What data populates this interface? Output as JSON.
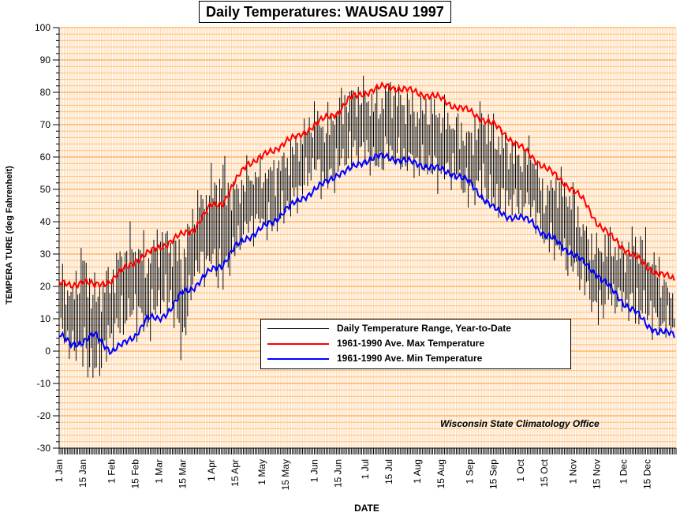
{
  "chart_data": {
    "type": "line",
    "title": "Daily Temperatures: WAUSAU 1997",
    "xlabel": "DATE",
    "ylabel": "TEMPERA TURE (deg Fahrenheit)",
    "ylim": [
      -30,
      100
    ],
    "yticks": [
      -30,
      -20,
      -10,
      0,
      10,
      20,
      30,
      40,
      50,
      60,
      70,
      80,
      90,
      100
    ],
    "xlim_day_of_year": [
      1,
      366
    ],
    "grid": true,
    "legend_position": "center",
    "x_tick_labels": [
      {
        "label": "1 Jan",
        "day": 1
      },
      {
        "label": "15 Jan",
        "day": 15
      },
      {
        "label": "1 Feb",
        "day": 32
      },
      {
        "label": "15 Feb",
        "day": 46
      },
      {
        "label": "1 Mar",
        "day": 60
      },
      {
        "label": "15 Mar",
        "day": 74
      },
      {
        "label": "1 Apr",
        "day": 91
      },
      {
        "label": "15 Apr",
        "day": 105
      },
      {
        "label": "1 May",
        "day": 121
      },
      {
        "label": "15 May",
        "day": 135
      },
      {
        "label": "1 Jun",
        "day": 152
      },
      {
        "label": "15 Jun",
        "day": 166
      },
      {
        "label": "1 Jul",
        "day": 182
      },
      {
        "label": "15 Jul",
        "day": 196
      },
      {
        "label": "1 Aug",
        "day": 213
      },
      {
        "label": "15 Aug",
        "day": 227
      },
      {
        "label": "1 Sep",
        "day": 244
      },
      {
        "label": "15 Sep",
        "day": 258
      },
      {
        "label": "1 Oct",
        "day": 274
      },
      {
        "label": "15 Oct",
        "day": 288
      },
      {
        "label": "1 Nov",
        "day": 305
      },
      {
        "label": "15 Nov",
        "day": 319
      },
      {
        "label": "1 Dec",
        "day": 335
      },
      {
        "label": "15 Dec",
        "day": 349
      }
    ],
    "series": [
      {
        "name": "Daily Temperature Range, Year-to-Date",
        "kind": "range",
        "color": "#000000",
        "anchor_days": [
          1,
          8,
          15,
          22,
          32,
          39,
          46,
          53,
          60,
          67,
          74,
          81,
          91,
          98,
          105,
          112,
          121,
          128,
          135,
          142,
          152,
          159,
          166,
          173,
          182,
          189,
          196,
          203,
          213,
          220,
          227,
          234,
          244,
          251,
          258,
          265,
          274,
          281,
          288,
          295,
          305,
          312,
          319,
          326,
          335,
          342,
          349,
          356,
          365
        ],
        "anchor_highs": [
          32,
          22,
          38,
          25,
          30,
          38,
          40,
          35,
          42,
          40,
          38,
          50,
          58,
          65,
          55,
          60,
          60,
          62,
          65,
          70,
          78,
          75,
          82,
          85,
          86,
          82,
          88,
          85,
          80,
          82,
          80,
          76,
          72,
          80,
          75,
          70,
          65,
          68,
          52,
          60,
          55,
          42,
          38,
          40,
          35,
          42,
          38,
          30,
          18
        ],
        "anchor_lows": [
          2,
          -5,
          -10,
          -15,
          -2,
          2,
          5,
          0,
          8,
          10,
          -8,
          18,
          20,
          12,
          25,
          32,
          35,
          32,
          38,
          42,
          52,
          45,
          50,
          55,
          55,
          50,
          55,
          52,
          52,
          50,
          48,
          50,
          42,
          45,
          38,
          40,
          40,
          38,
          30,
          25,
          18,
          15,
          5,
          10,
          10,
          5,
          5,
          2,
          5
        ]
      },
      {
        "name": "1961-1990 Ave. Max Temperature",
        "kind": "line",
        "color": "#ff0000",
        "x": [
          1,
          8,
          15,
          22,
          32,
          39,
          46,
          53,
          60,
          67,
          74,
          81,
          91,
          98,
          105,
          112,
          121,
          128,
          135,
          142,
          152,
          159,
          166,
          173,
          182,
          189,
          196,
          203,
          213,
          220,
          227,
          234,
          244,
          251,
          258,
          265,
          274,
          281,
          288,
          295,
          305,
          312,
          319,
          326,
          335,
          342,
          349,
          356,
          365
        ],
        "values": [
          21,
          20,
          22,
          20,
          22,
          25,
          28,
          30,
          32,
          34,
          36,
          38,
          45,
          46,
          52,
          58,
          60,
          62,
          65,
          66,
          70,
          72,
          74,
          78,
          80,
          81,
          82,
          81,
          80,
          79,
          78,
          76,
          74,
          72,
          70,
          67,
          63,
          60,
          57,
          54,
          50,
          46,
          40,
          36,
          32,
          29,
          26,
          24,
          22
        ]
      },
      {
        "name": "1961-1990 Ave. Min Temperature",
        "kind": "line",
        "color": "#0000ff",
        "x": [
          1,
          8,
          15,
          22,
          32,
          39,
          46,
          53,
          60,
          67,
          74,
          81,
          91,
          98,
          105,
          112,
          121,
          128,
          135,
          142,
          152,
          159,
          166,
          173,
          182,
          189,
          196,
          203,
          213,
          220,
          227,
          234,
          244,
          251,
          258,
          265,
          274,
          281,
          288,
          295,
          305,
          312,
          319,
          326,
          335,
          342,
          349,
          356,
          365
        ],
        "values": [
          5,
          2,
          3,
          5,
          0,
          2,
          5,
          10,
          10,
          13,
          18,
          20,
          25,
          27,
          32,
          35,
          38,
          40,
          44,
          46,
          50,
          52,
          55,
          56,
          59,
          60,
          60,
          59,
          58,
          57,
          56,
          55,
          52,
          48,
          44,
          42,
          41,
          40,
          36,
          34,
          30,
          27,
          24,
          20,
          15,
          12,
          8,
          6,
          5
        ]
      }
    ]
  },
  "credit": "Wisconsin State Climatology Office"
}
